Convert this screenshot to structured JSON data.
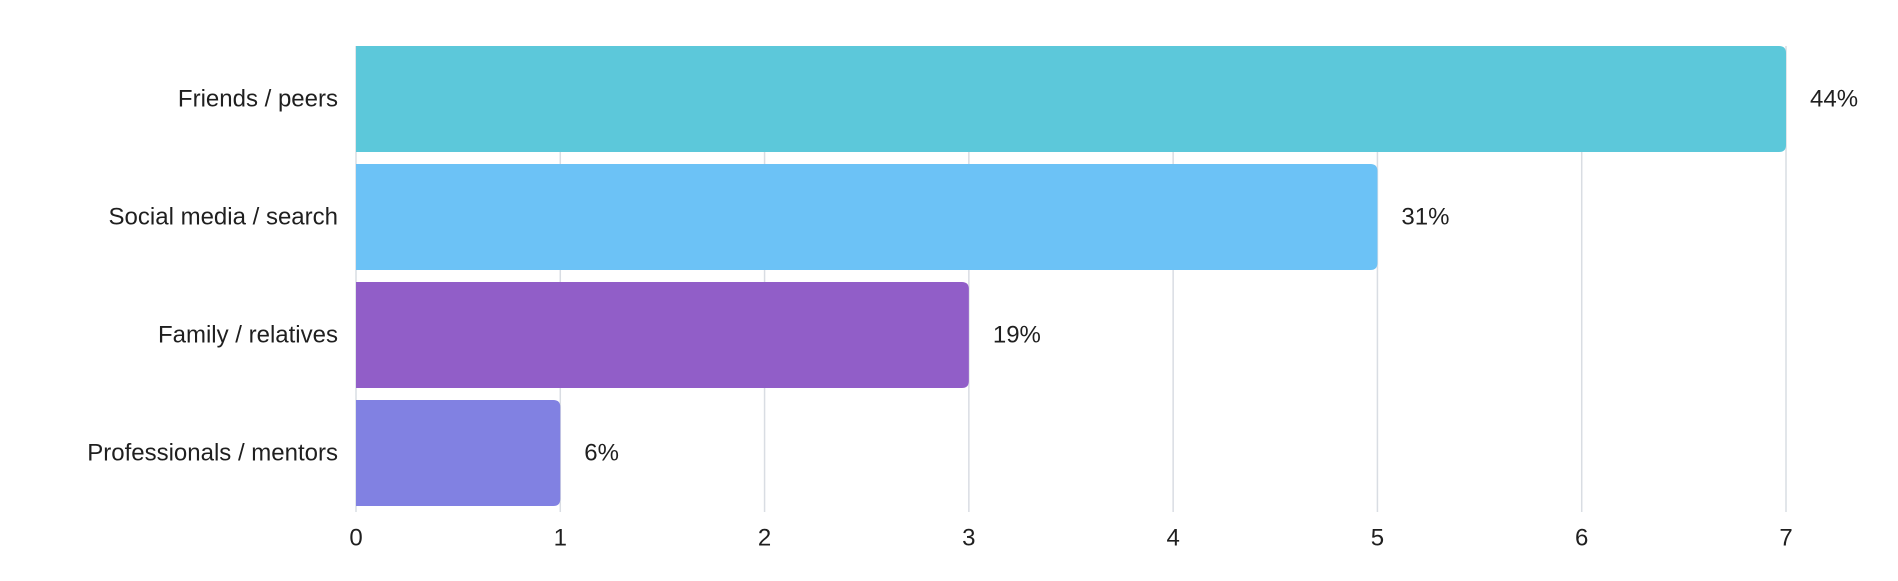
{
  "chart_data": {
    "type": "bar",
    "orientation": "horizontal",
    "categories": [
      "Friends / peers",
      "Social media / search",
      "Family / relatives",
      "Professionals / mentors"
    ],
    "values": [
      7,
      5,
      3,
      1
    ],
    "data_labels": [
      "44%",
      "31%",
      "19%",
      "6%"
    ],
    "colors": [
      "#5cc8da",
      "#6cc2f6",
      "#915ec8",
      "#8181e2"
    ],
    "xlim": [
      0,
      7
    ],
    "x_ticks": [
      "0",
      "1",
      "2",
      "3",
      "4",
      "5",
      "6",
      "7"
    ],
    "grid": true,
    "gridline_color": "#d9dde3",
    "legend": "none"
  }
}
